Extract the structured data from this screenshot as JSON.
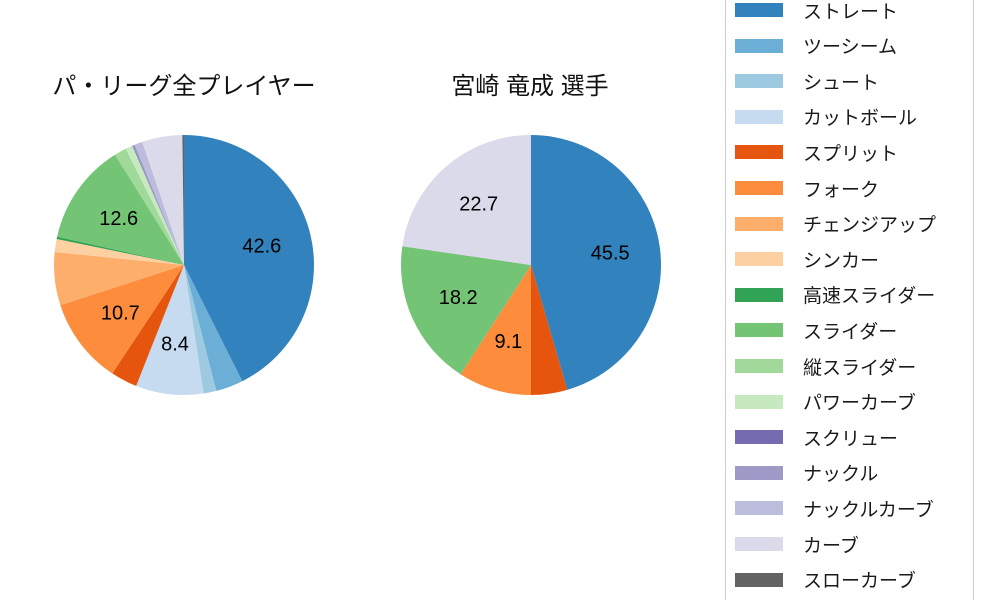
{
  "titles": {
    "left": "パ・リーグ全プレイヤー",
    "right": "宮崎 竜成 選手"
  },
  "legend": {
    "items": [
      {
        "label": "ストレート",
        "color": "#3182bd"
      },
      {
        "label": "ツーシーム",
        "color": "#6baed6"
      },
      {
        "label": "シュート",
        "color": "#9ecae1"
      },
      {
        "label": "カットボール",
        "color": "#c6dbef"
      },
      {
        "label": "スプリット",
        "color": "#e6550d"
      },
      {
        "label": "フォーク",
        "color": "#fd8d3c"
      },
      {
        "label": "チェンジアップ",
        "color": "#fdae6b"
      },
      {
        "label": "シンカー",
        "color": "#fdd0a2"
      },
      {
        "label": "高速スライダー",
        "color": "#31a354"
      },
      {
        "label": "スライダー",
        "color": "#74c476"
      },
      {
        "label": "縦スライダー",
        "color": "#a1d99b"
      },
      {
        "label": "パワーカーブ",
        "color": "#c7e9c0"
      },
      {
        "label": "スクリュー",
        "color": "#756bb1"
      },
      {
        "label": "ナックル",
        "color": "#9e9ac8"
      },
      {
        "label": "ナックルカーブ",
        "color": "#bcbddc"
      },
      {
        "label": "カーブ",
        "color": "#dadaeb"
      },
      {
        "label": "スローカーブ",
        "color": "#636363"
      }
    ]
  },
  "chart_data": [
    {
      "type": "pie",
      "title": "パ・リーグ全プレイヤー",
      "start_angle": "top",
      "direction": "clockwise",
      "label_min_pct": 8,
      "labeled_values_shown": [
        42.6,
        8.4,
        10.7,
        12.6
      ],
      "slices": [
        {
          "label": "ストレート",
          "value": 42.6,
          "color": "#3182bd"
        },
        {
          "label": "ツーシーム",
          "value": 3.4,
          "color": "#6baed6"
        },
        {
          "label": "シュート",
          "value": 1.6,
          "color": "#9ecae1"
        },
        {
          "label": "カットボール",
          "value": 8.4,
          "color": "#c6dbef"
        },
        {
          "label": "スプリット",
          "value": 3.3,
          "color": "#e6550d"
        },
        {
          "label": "フォーク",
          "value": 10.7,
          "color": "#fd8d3c"
        },
        {
          "label": "チェンジアップ",
          "value": 6.6,
          "color": "#fdae6b"
        },
        {
          "label": "シンカー",
          "value": 1.6,
          "color": "#fdd0a2"
        },
        {
          "label": "高速スライダー",
          "value": 0.3,
          "color": "#31a354"
        },
        {
          "label": "スライダー",
          "value": 12.6,
          "color": "#74c476"
        },
        {
          "label": "縦スライダー",
          "value": 1.5,
          "color": "#a1d99b"
        },
        {
          "label": "パワーカーブ",
          "value": 0.9,
          "color": "#c7e9c0"
        },
        {
          "label": "スクリュー",
          "value": 0.1,
          "color": "#756bb1"
        },
        {
          "label": "ナックル",
          "value": 0.2,
          "color": "#9e9ac8"
        },
        {
          "label": "ナックルカーブ",
          "value": 1.0,
          "color": "#bcbddc"
        },
        {
          "label": "カーブ",
          "value": 5.0,
          "color": "#dadaeb"
        },
        {
          "label": "スローカーブ",
          "value": 0.2,
          "color": "#636363"
        }
      ]
    },
    {
      "type": "pie",
      "title": "宮崎 竜成 選手",
      "start_angle": "top",
      "direction": "clockwise",
      "label_min_pct": 8,
      "labeled_values_shown": [
        45.5,
        9.1,
        18.2,
        22.7
      ],
      "slices": [
        {
          "label": "ストレート",
          "value": 45.5,
          "color": "#3182bd"
        },
        {
          "label": "スプリット",
          "value": 4.5,
          "color": "#e6550d"
        },
        {
          "label": "フォーク",
          "value": 9.1,
          "color": "#fd8d3c"
        },
        {
          "label": "スライダー",
          "value": 18.2,
          "color": "#74c476"
        },
        {
          "label": "カーブ",
          "value": 22.7,
          "color": "#dadaeb"
        }
      ]
    }
  ]
}
